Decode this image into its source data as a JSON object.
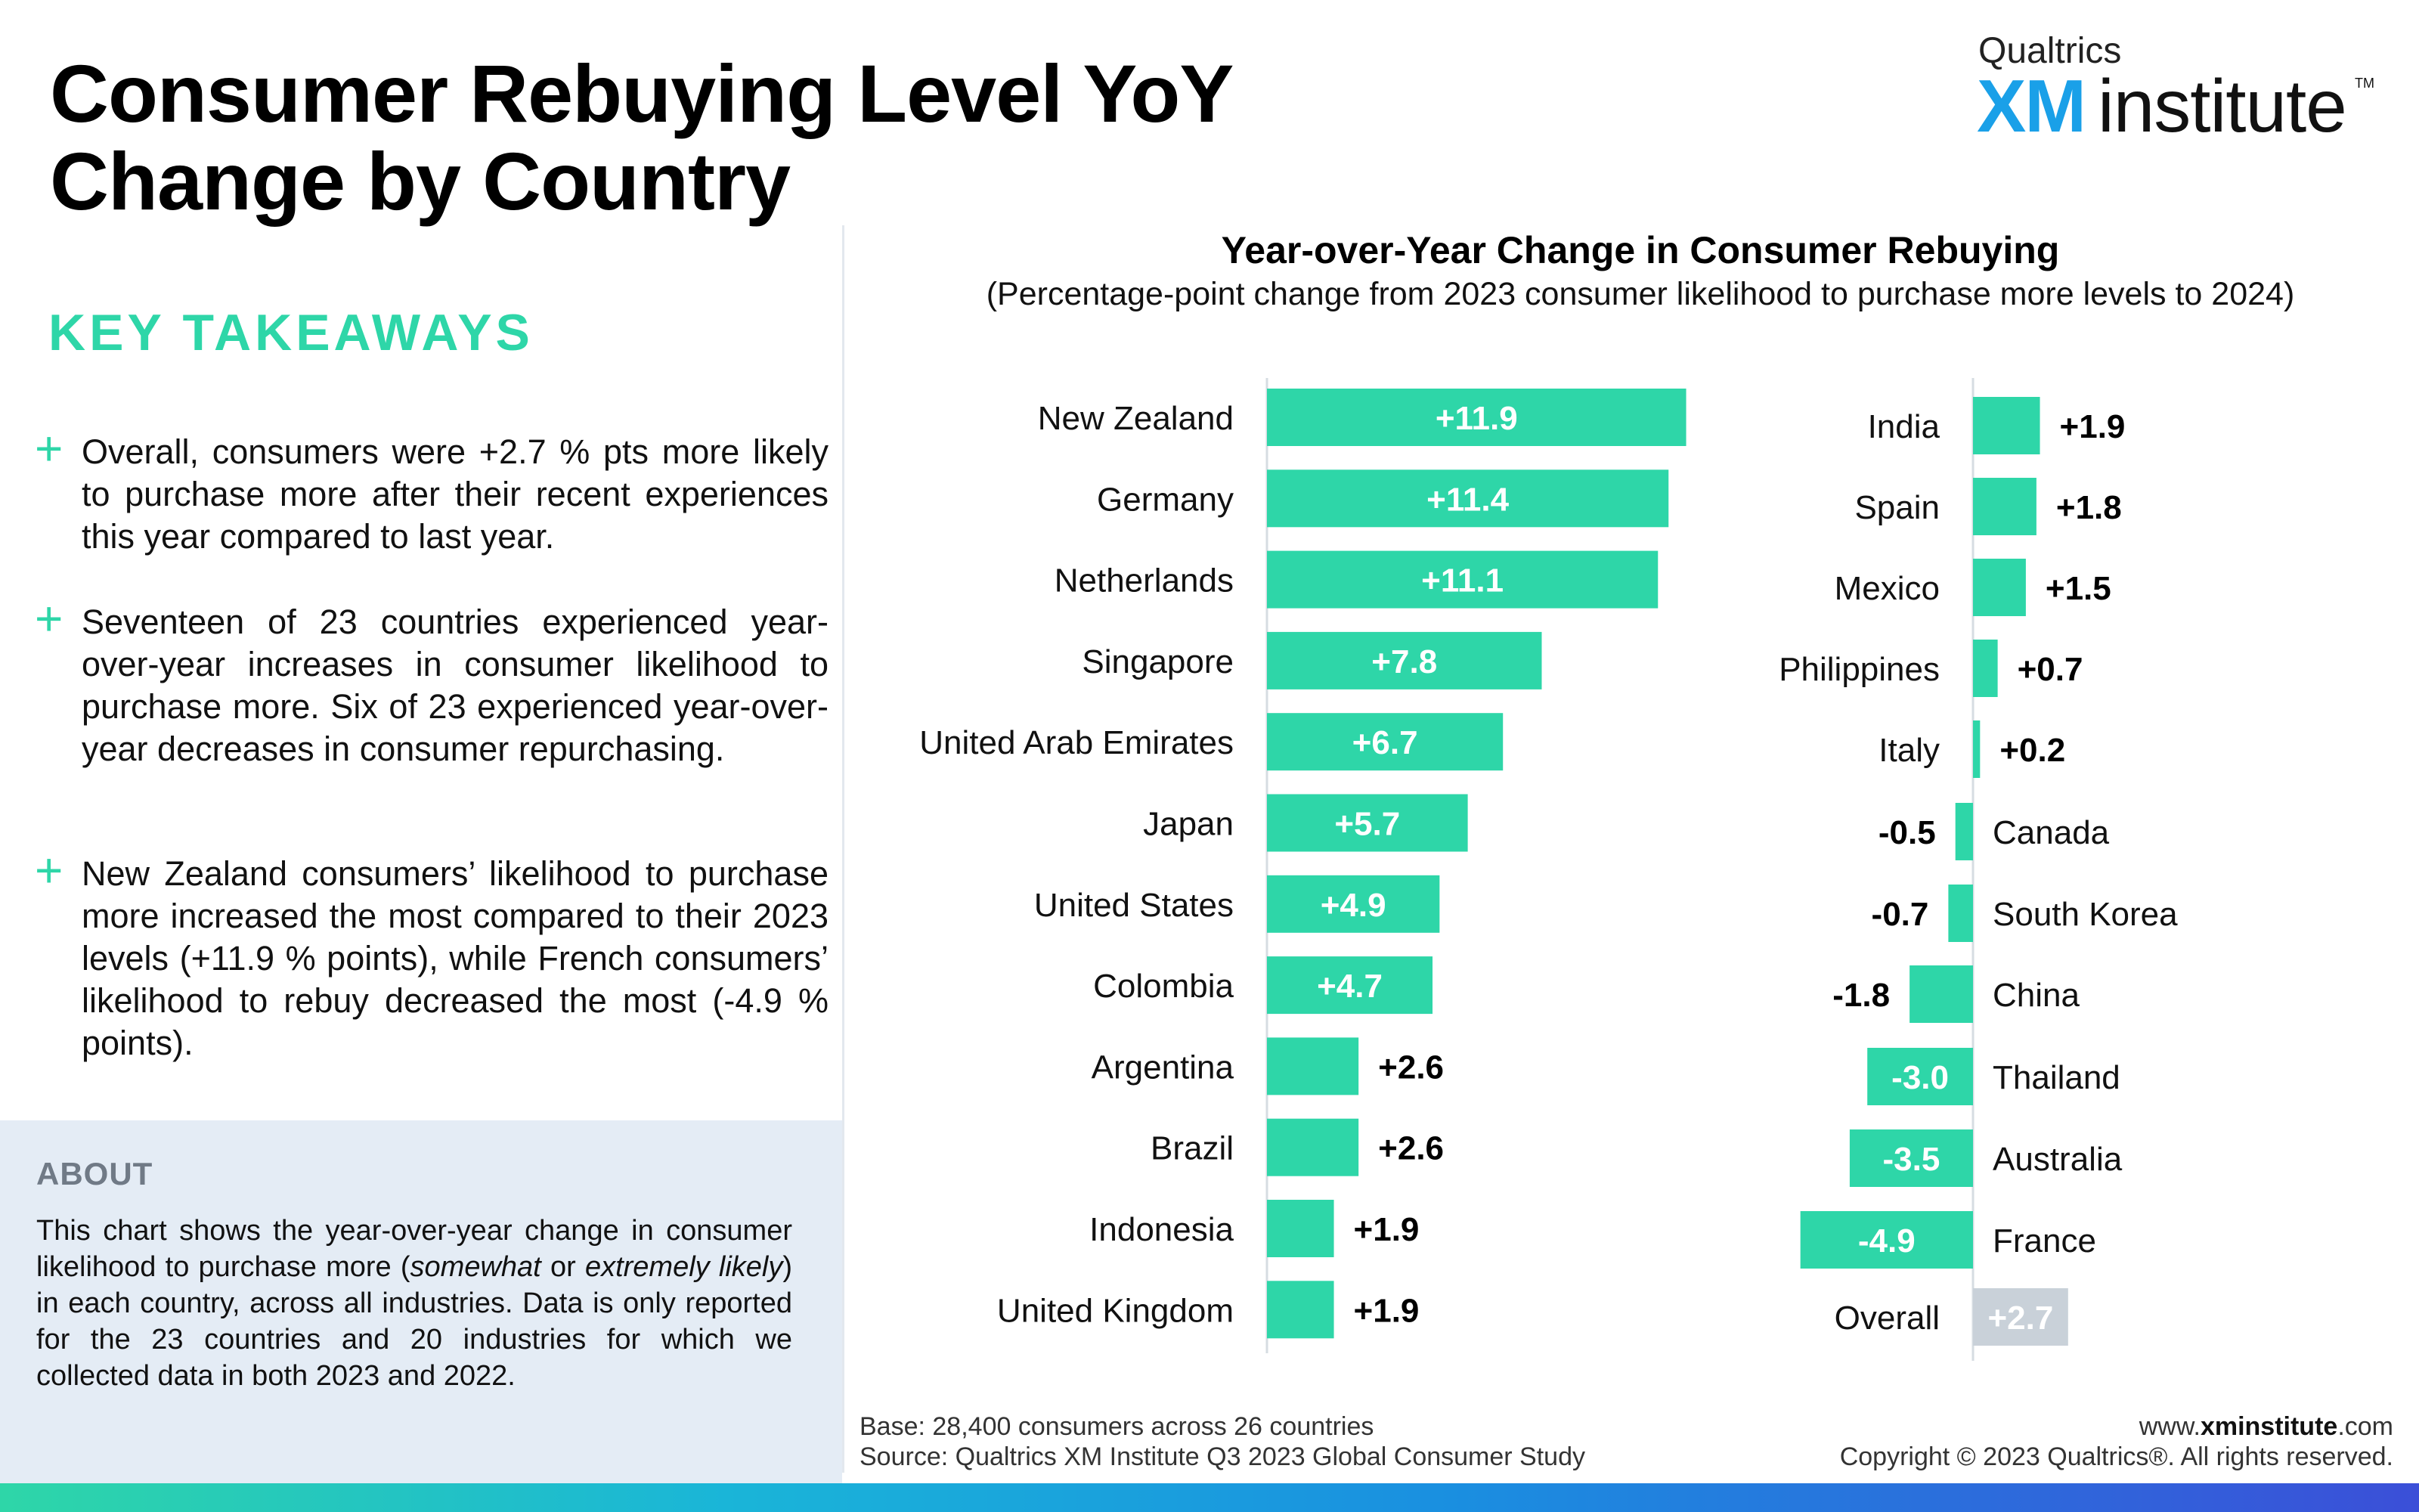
{
  "header": {
    "title": "Consumer Rebuying Level YoY Change by Country",
    "logo_brand": "Qualtrics",
    "logo_xm": "XM",
    "logo_institute": "institute",
    "logo_tm": "TM"
  },
  "takeaways": {
    "heading": "KEY TAKEAWAYS",
    "plus_glyph": "+",
    "items": [
      "Overall, consumers were +2.7 % pts more likely to purchase more after their recent experiences this year compared to last year.",
      "Seventeen of 23 countries experienced year-over-year increases in consumer likelihood to purchase more. Six of 23 experienced year-over-year decreases in consumer repurchasing.",
      "New Zealand consumers’ likelihood to purchase more increased the most compared to their 2023 levels (+11.9 % points), while French consumers’ likelihood to rebuy decreased the most (-4.9 % points)."
    ]
  },
  "about": {
    "heading": "ABOUT",
    "text_1": "This chart shows the year-over-year change in consumer likelihood to purchase more (",
    "italic_1": "somewhat",
    "text_2": " or ",
    "italic_2": "extremely likely",
    "text_3": ") in each country, across all industries. Data is only reported for the 23 countries and 20 industries for which we collected data in both 2023 and 2022."
  },
  "chart_data": {
    "type": "bar",
    "orientation": "horizontal",
    "title": "Year-over-Year Change in Consumer Rebuying",
    "subtitle": "(Percentage-point change from 2023 consumer likelihood to purchase more levels to 2024)",
    "panels": [
      {
        "categories": [
          "New Zealand",
          "Germany",
          "Netherlands",
          "Singapore",
          "United Arab Emirates",
          "Japan",
          "United States",
          "Colombia",
          "Argentina",
          "Brazil",
          "Indonesia",
          "United Kingdom"
        ],
        "values": [
          11.9,
          11.4,
          11.1,
          7.8,
          6.7,
          5.7,
          4.9,
          4.7,
          2.6,
          2.6,
          1.9,
          1.9
        ],
        "labels": [
          "+11.9",
          "+11.4",
          "+11.1",
          "+7.8",
          "+6.7",
          "+5.7",
          "+4.9",
          "+4.7",
          "+2.6",
          "+2.6",
          "+1.9",
          "+1.9"
        ]
      },
      {
        "categories": [
          "India",
          "Spain",
          "Mexico",
          "Philippines",
          "Italy",
          "Canada",
          "South Korea",
          "China",
          "Thailand",
          "Australia",
          "France",
          "Overall"
        ],
        "values": [
          1.9,
          1.8,
          1.5,
          0.7,
          0.2,
          -0.5,
          -0.7,
          -1.8,
          -3.0,
          -3.5,
          -4.9,
          2.7
        ],
        "labels": [
          "+1.9",
          "+1.8",
          "+1.5",
          "+0.7",
          "+0.2",
          "-0.5",
          "-0.7",
          "-1.8",
          "-3.0",
          "-3.5",
          "-4.9",
          "+2.7"
        ]
      }
    ],
    "colors": {
      "bar": "#2ed6a8",
      "overall_bar": "#c9d1d9",
      "label_inside": "#ffffff",
      "label_outside": "#000000",
      "axis": "#d6dce2"
    }
  },
  "footer": {
    "base": "Base: 28,400 consumers across 26 countries",
    "source": "Source: Qualtrics XM Institute Q3 2023 Global Consumer Study",
    "url_prefix": "www.",
    "url_bold": "xminstitute",
    "url_suffix": ".com",
    "copyright": "Copyright © 2023 Qualtrics®. All rights reserved."
  }
}
